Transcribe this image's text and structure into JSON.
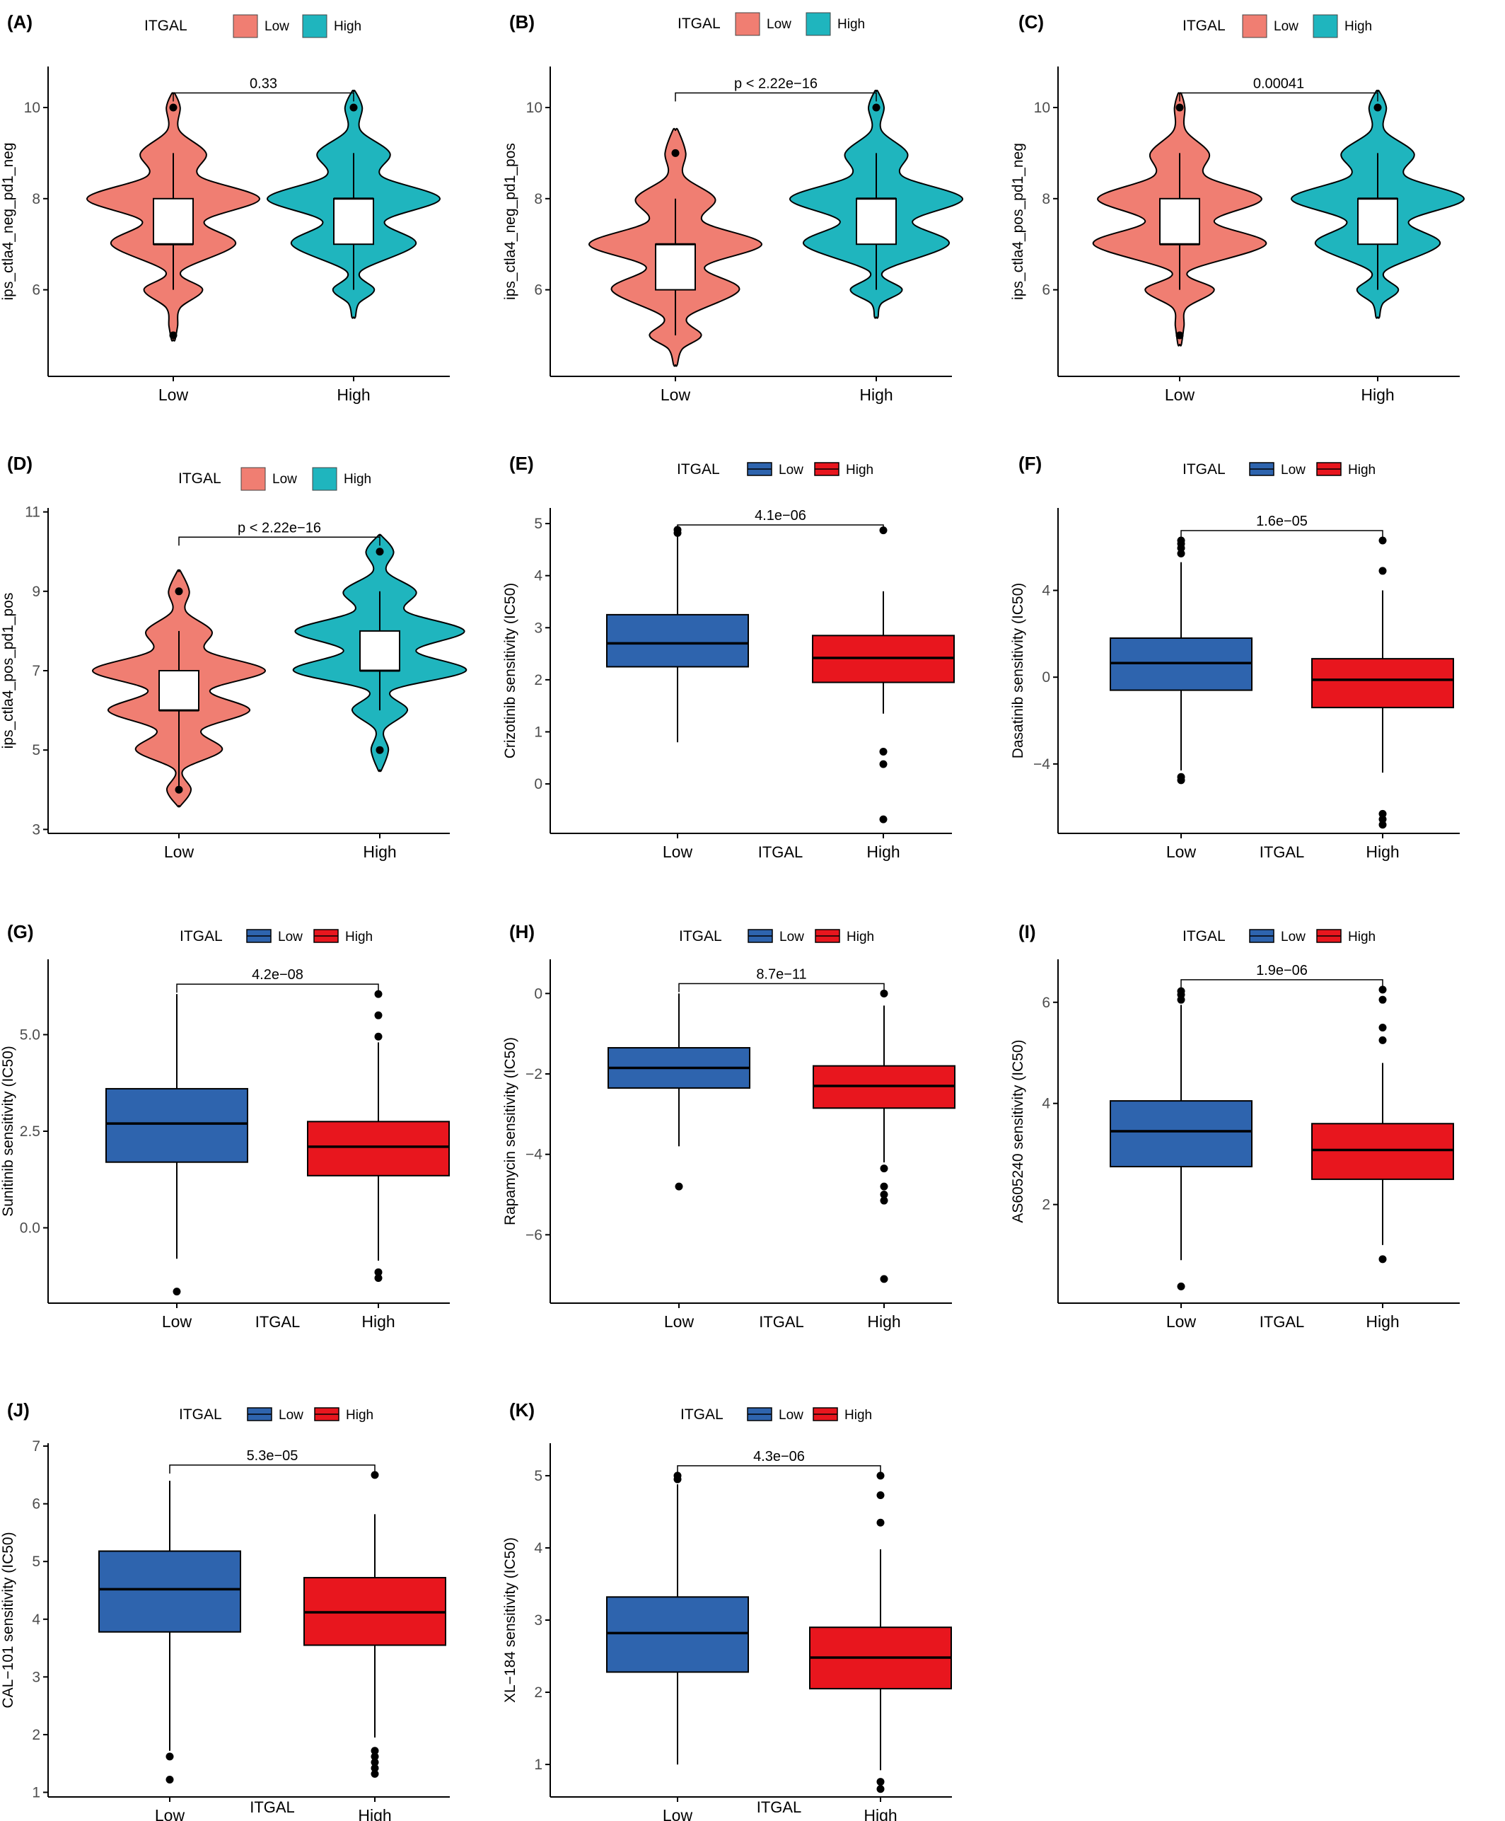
{
  "colors": {
    "violin_low": "#F07E72",
    "violin_high": "#1FB5BE",
    "box_low": "#2E64AE",
    "box_high": "#E8161E",
    "axis": "#000000",
    "tick_text": "#4D4D4D"
  },
  "chart_data": [
    {
      "panel": "(A)",
      "type": "violin",
      "legend_title": "ITGAL",
      "legend_items": [
        "Low",
        "High"
      ],
      "categories": [
        "Low",
        "High"
      ],
      "xlabel": "",
      "ylabel": "ips_ctla4_neg_pd1_neg",
      "ylim": [
        4.1,
        10.9
      ],
      "yticks": [
        6,
        8,
        10
      ],
      "ytick_labels": [
        "6",
        "8",
        "10"
      ],
      "pvalue": "0.33",
      "groups": [
        {
          "name": "Low",
          "min": 6,
          "q1": 7,
          "median": 7,
          "q3": 8,
          "max": 9,
          "outliers": [
            5,
            10
          ],
          "density": [
            [
              4.9,
              0.02
            ],
            [
              5.2,
              0.05
            ],
            [
              5.6,
              0.08
            ],
            [
              6,
              0.34
            ],
            [
              6.4,
              0.09
            ],
            [
              7,
              0.72
            ],
            [
              7.5,
              0.36
            ],
            [
              8,
              1.0
            ],
            [
              8.5,
              0.3
            ],
            [
              9,
              0.38
            ],
            [
              9.5,
              0.07
            ],
            [
              10,
              0.08
            ],
            [
              10.3,
              0.02
            ]
          ]
        },
        {
          "name": "High",
          "min": 6,
          "q1": 7,
          "median": 8,
          "q3": 8,
          "max": 9,
          "outliers": [
            10
          ],
          "density": [
            [
              5.4,
              0.02
            ],
            [
              5.7,
              0.06
            ],
            [
              6,
              0.24
            ],
            [
              6.4,
              0.08
            ],
            [
              7,
              0.72
            ],
            [
              7.5,
              0.36
            ],
            [
              8,
              1.0
            ],
            [
              8.5,
              0.32
            ],
            [
              9,
              0.42
            ],
            [
              9.5,
              0.08
            ],
            [
              10,
              0.1
            ],
            [
              10.35,
              0.02
            ]
          ]
        }
      ]
    },
    {
      "panel": "(B)",
      "type": "violin",
      "legend_title": "ITGAL",
      "legend_items": [
        "Low",
        "High"
      ],
      "categories": [
        "Low",
        "High"
      ],
      "xlabel": "",
      "ylabel": "ips_ctla4_neg_pd1_pos",
      "ylim": [
        4.1,
        10.9
      ],
      "yticks": [
        6,
        8,
        10
      ],
      "ytick_labels": [
        "6",
        "8",
        "10"
      ],
      "pvalue": "p < 2.22e−16",
      "groups": [
        {
          "name": "Low",
          "min": 5,
          "q1": 6,
          "median": 7,
          "q3": 7,
          "max": 8,
          "outliers": [
            9
          ],
          "density": [
            [
              4.35,
              0.02
            ],
            [
              4.7,
              0.08
            ],
            [
              5,
              0.3
            ],
            [
              5.4,
              0.14
            ],
            [
              6,
              0.74
            ],
            [
              6.5,
              0.34
            ],
            [
              7,
              1.0
            ],
            [
              7.5,
              0.32
            ],
            [
              8,
              0.46
            ],
            [
              8.5,
              0.1
            ],
            [
              9,
              0.12
            ],
            [
              9.5,
              0.03
            ]
          ]
        },
        {
          "name": "High",
          "min": 6,
          "q1": 7,
          "median": 8,
          "q3": 8,
          "max": 9,
          "outliers": [
            10
          ],
          "density": [
            [
              5.4,
              0.02
            ],
            [
              5.7,
              0.06
            ],
            [
              6,
              0.3
            ],
            [
              6.4,
              0.08
            ],
            [
              7,
              0.84
            ],
            [
              7.5,
              0.42
            ],
            [
              8,
              1.0
            ],
            [
              8.5,
              0.3
            ],
            [
              9,
              0.36
            ],
            [
              9.5,
              0.06
            ],
            [
              10,
              0.09
            ],
            [
              10.35,
              0.02
            ]
          ]
        }
      ]
    },
    {
      "panel": "(C)",
      "type": "violin",
      "legend_title": "ITGAL",
      "legend_items": [
        "Low",
        "High"
      ],
      "categories": [
        "Low",
        "High"
      ],
      "xlabel": "",
      "ylabel": "ips_ctla4_pos_pd1_neg",
      "ylim": [
        4.1,
        10.9
      ],
      "yticks": [
        6,
        8,
        10
      ],
      "ytick_labels": [
        "6",
        "8",
        "10"
      ],
      "pvalue": "0.00041",
      "groups": [
        {
          "name": "Low",
          "min": 6,
          "q1": 7,
          "median": 7,
          "q3": 8,
          "max": 9,
          "outliers": [
            5,
            10
          ],
          "density": [
            [
              4.8,
              0.02
            ],
            [
              5.2,
              0.05
            ],
            [
              5.6,
              0.08
            ],
            [
              6,
              0.4
            ],
            [
              6.4,
              0.1
            ],
            [
              7,
              1.0
            ],
            [
              7.5,
              0.4
            ],
            [
              8,
              0.95
            ],
            [
              8.5,
              0.3
            ],
            [
              9,
              0.34
            ],
            [
              9.5,
              0.07
            ],
            [
              10,
              0.06
            ],
            [
              10.3,
              0.02
            ]
          ]
        },
        {
          "name": "High",
          "min": 6,
          "q1": 7,
          "median": 8,
          "q3": 8,
          "max": 9,
          "outliers": [
            10
          ],
          "density": [
            [
              5.4,
              0.02
            ],
            [
              5.7,
              0.06
            ],
            [
              6,
              0.24
            ],
            [
              6.4,
              0.08
            ],
            [
              7,
              0.72
            ],
            [
              7.5,
              0.36
            ],
            [
              8,
              1.0
            ],
            [
              8.5,
              0.32
            ],
            [
              9,
              0.42
            ],
            [
              9.5,
              0.08
            ],
            [
              10,
              0.1
            ],
            [
              10.35,
              0.02
            ]
          ]
        }
      ]
    },
    {
      "panel": "(D)",
      "type": "violin",
      "legend_title": "ITGAL",
      "legend_items": [
        "Low",
        "High"
      ],
      "categories": [
        "Low",
        "High"
      ],
      "xlabel": "",
      "ylabel": "ips_ctla4_pos_pd1_pos",
      "ylim": [
        2.9,
        11.1
      ],
      "yticks": [
        3,
        5,
        7,
        9,
        11
      ],
      "ytick_labels": [
        "3",
        "5",
        "7",
        "9",
        "11"
      ],
      "pvalue": "p < 2.22e−16",
      "groups": [
        {
          "name": "Low",
          "min": 4,
          "q1": 6,
          "median": 6,
          "q3": 7,
          "max": 8,
          "outliers": [
            4,
            9
          ],
          "density": [
            [
              3.6,
              0.02
            ],
            [
              4,
              0.14
            ],
            [
              4.5,
              0.05
            ],
            [
              5,
              0.5
            ],
            [
              5.5,
              0.26
            ],
            [
              6,
              0.82
            ],
            [
              6.5,
              0.36
            ],
            [
              7,
              1.0
            ],
            [
              7.5,
              0.32
            ],
            [
              8,
              0.38
            ],
            [
              8.5,
              0.08
            ],
            [
              9,
              0.12
            ],
            [
              9.5,
              0.02
            ]
          ]
        },
        {
          "name": "High",
          "min": 6,
          "q1": 7,
          "median": 7,
          "q3": 8,
          "max": 9,
          "outliers": [
            5,
            10
          ],
          "density": [
            [
              4.5,
              0.02
            ],
            [
              5,
              0.1
            ],
            [
              5.5,
              0.05
            ],
            [
              6,
              0.32
            ],
            [
              6.5,
              0.14
            ],
            [
              7,
              1.0
            ],
            [
              7.5,
              0.42
            ],
            [
              8,
              0.98
            ],
            [
              8.5,
              0.3
            ],
            [
              9,
              0.42
            ],
            [
              9.5,
              0.08
            ],
            [
              10,
              0.16
            ],
            [
              10.4,
              0.02
            ]
          ]
        }
      ]
    },
    {
      "panel": "(E)",
      "type": "box",
      "legend_title": "ITGAL",
      "legend_items": [
        "Low",
        "High"
      ],
      "categories": [
        "Low",
        "High"
      ],
      "xlabel": "ITGAL",
      "ylabel": "Crizotinib sensitivity (IC50)",
      "ylim": [
        -0.95,
        5.3
      ],
      "yticks": [
        0,
        1,
        2,
        3,
        4,
        5
      ],
      "ytick_labels": [
        "0",
        "1",
        "2",
        "3",
        "4",
        "5"
      ],
      "pvalue": "4.1e−06",
      "groups": [
        {
          "name": "Low",
          "min": 0.8,
          "q1": 2.25,
          "median": 2.7,
          "q3": 3.25,
          "max": 4.75,
          "outliers": [
            4.82,
            4.88
          ]
        },
        {
          "name": "High",
          "min": 1.35,
          "q1": 1.95,
          "median": 2.42,
          "q3": 2.85,
          "max": 3.7,
          "outliers": [
            4.87,
            0.62,
            0.38,
            -0.68
          ]
        }
      ]
    },
    {
      "panel": "(F)",
      "type": "box",
      "legend_title": "ITGAL",
      "legend_items": [
        "Low",
        "High"
      ],
      "categories": [
        "Low",
        "High"
      ],
      "xlabel": "ITGAL",
      "ylabel": "Dasatinib sensitivity (IC50)",
      "ylim": [
        -7.2,
        7.8
      ],
      "yticks": [
        -4,
        0,
        4
      ],
      "ytick_labels": [
        "−4",
        "0",
        "4"
      ],
      "pvalue": "1.6e−05",
      "groups": [
        {
          "name": "Low",
          "min": -4.3,
          "q1": -0.6,
          "median": 0.65,
          "q3": 1.8,
          "max": 5.3,
          "outliers": [
            5.7,
            5.95,
            6.15,
            6.3,
            -4.6,
            -4.75
          ]
        },
        {
          "name": "High",
          "min": -4.4,
          "q1": -1.4,
          "median": -0.12,
          "q3": 0.85,
          "max": 4.0,
          "outliers": [
            6.3,
            4.9,
            -6.3,
            -6.55,
            -6.8
          ]
        }
      ]
    },
    {
      "panel": "(G)",
      "type": "box",
      "legend_title": "ITGAL",
      "legend_items": [
        "Low",
        "High"
      ],
      "categories": [
        "Low",
        "High"
      ],
      "xlabel": "ITGAL",
      "ylabel": "Sunitinib sensitivity (IC50)",
      "ylim": [
        -1.95,
        6.95
      ],
      "yticks": [
        0,
        2.5,
        5
      ],
      "ytick_labels": [
        "0.0",
        "2.5",
        "5.0"
      ],
      "pvalue": "4.2e−08",
      "groups": [
        {
          "name": "Low",
          "min": -0.8,
          "q1": 1.7,
          "median": 2.7,
          "q3": 3.6,
          "max": 6.05,
          "outliers": [
            -1.65
          ]
        },
        {
          "name": "High",
          "min": -0.85,
          "q1": 1.35,
          "median": 2.1,
          "q3": 2.75,
          "max": 4.8,
          "outliers": [
            6.05,
            5.5,
            4.95,
            -1.15,
            -1.3
          ]
        }
      ]
    },
    {
      "panel": "(H)",
      "type": "box",
      "legend_title": "ITGAL",
      "legend_items": [
        "Low",
        "High"
      ],
      "categories": [
        "Low",
        "High"
      ],
      "xlabel": "ITGAL",
      "ylabel": "Rapamycin sensitivity (IC50)",
      "ylim": [
        -7.7,
        0.85
      ],
      "yticks": [
        -6,
        -4,
        -2,
        0
      ],
      "ytick_labels": [
        "−6",
        "−4",
        "−2",
        "0"
      ],
      "pvalue": "8.7e−11",
      "groups": [
        {
          "name": "Low",
          "min": -3.8,
          "q1": -2.35,
          "median": -1.85,
          "q3": -1.35,
          "max": 0,
          "outliers": [
            -4.8
          ]
        },
        {
          "name": "High",
          "min": -4.2,
          "q1": -2.85,
          "median": -2.3,
          "q3": -1.8,
          "max": -0.3,
          "outliers": [
            0,
            -4.35,
            -4.8,
            -5.0,
            -5.15,
            -7.1
          ]
        }
      ]
    },
    {
      "panel": "(I)",
      "type": "box",
      "legend_title": "ITGAL",
      "legend_items": [
        "Low",
        "High"
      ],
      "categories": [
        "Low",
        "High"
      ],
      "xlabel": "ITGAL",
      "ylabel": "AS605240 sensitivity (IC50)",
      "ylim": [
        0.05,
        6.85
      ],
      "yticks": [
        2,
        4,
        6
      ],
      "ytick_labels": [
        "2",
        "4",
        "6"
      ],
      "pvalue": "1.9e−06",
      "groups": [
        {
          "name": "Low",
          "min": 0.9,
          "q1": 2.75,
          "median": 3.45,
          "q3": 4.05,
          "max": 5.95,
          "outliers": [
            6.05,
            6.15,
            6.22,
            0.38
          ]
        },
        {
          "name": "High",
          "min": 1.2,
          "q1": 2.5,
          "median": 3.08,
          "q3": 3.6,
          "max": 4.8,
          "outliers": [
            6.25,
            6.05,
            5.5,
            5.25,
            0.92
          ]
        }
      ]
    },
    {
      "panel": "(J)",
      "type": "box",
      "legend_title": "ITGAL",
      "legend_items": [
        "Low",
        "High"
      ],
      "categories": [
        "Low",
        "High"
      ],
      "xlabel": "ITGAL",
      "ylabel": "CAL−101 sensitivity (IC50)",
      "ylim": [
        0.92,
        7.05
      ],
      "yticks": [
        1,
        2,
        3,
        4,
        5,
        6,
        7
      ],
      "ytick_labels": [
        "1",
        "2",
        "3",
        "4",
        "5",
        "6",
        "7"
      ],
      "pvalue": "5.3e−05",
      "groups": [
        {
          "name": "Low",
          "min": 1.72,
          "q1": 3.78,
          "median": 4.52,
          "q3": 5.18,
          "max": 6.4,
          "outliers": [
            1.62,
            1.22
          ]
        },
        {
          "name": "High",
          "min": 1.95,
          "q1": 3.55,
          "median": 4.12,
          "q3": 4.72,
          "max": 5.82,
          "outliers": [
            6.5,
            1.72,
            1.62,
            1.52,
            1.42,
            1.32
          ]
        }
      ]
    },
    {
      "panel": "(K)",
      "type": "box",
      "legend_title": "ITGAL",
      "legend_items": [
        "Low",
        "High"
      ],
      "categories": [
        "Low",
        "High"
      ],
      "xlabel": "ITGAL",
      "ylabel": "XL−184 sensitivity (IC50)",
      "ylim": [
        0.55,
        5.45
      ],
      "yticks": [
        1,
        2,
        3,
        4,
        5
      ],
      "ytick_labels": [
        "1",
        "2",
        "3",
        "4",
        "5"
      ],
      "pvalue": "4.3e−06",
      "groups": [
        {
          "name": "Low",
          "min": 1.0,
          "q1": 2.28,
          "median": 2.82,
          "q3": 3.32,
          "max": 4.88,
          "outliers": [
            4.95,
            5.0
          ]
        },
        {
          "name": "High",
          "min": 0.92,
          "q1": 2.05,
          "median": 2.48,
          "q3": 2.9,
          "max": 3.98,
          "outliers": [
            5.0,
            4.73,
            4.35,
            0.76,
            0.66
          ]
        }
      ]
    }
  ]
}
